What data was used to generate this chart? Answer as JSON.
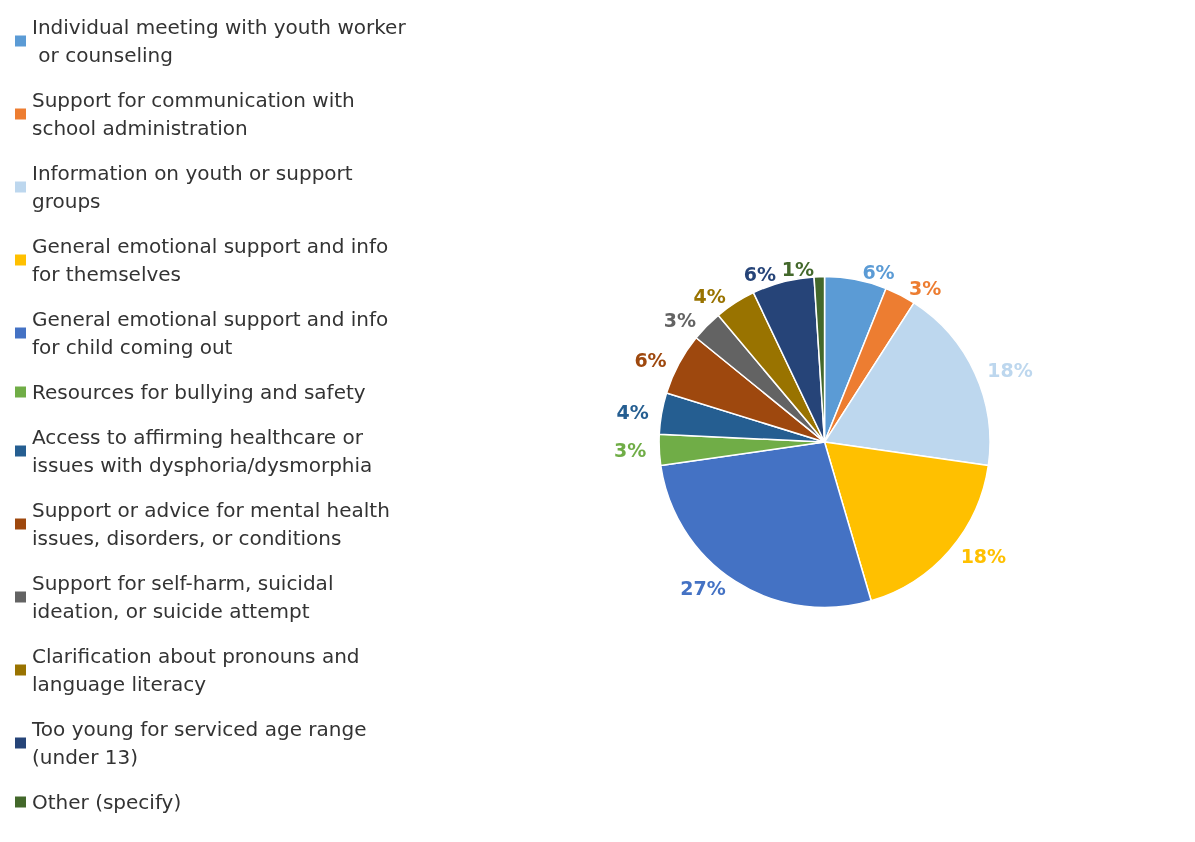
{
  "chart_data": {
    "type": "pie",
    "categories": [
      "Individual meeting with youth worker or counseling",
      "Support for communication with school administration",
      "Information on youth or support groups",
      "General emotional support and info for themselves",
      "General emotional support and info for child coming out",
      "Resources for bullying and safety",
      "Access to affirming healthcare or issues with dysphoria/dysmorphia",
      "Support or advice for mental health issues, disorders, or conditions",
      "Support for self-harm, suicidal ideation, or suicide attempt",
      "Clarification about pronouns and language literacy",
      "Too young for serviced age range (under 13)",
      "Other (specify)"
    ],
    "values": [
      6,
      3,
      18,
      18,
      27,
      3,
      4,
      6,
      3,
      4,
      6,
      1
    ],
    "value_labels": [
      "6%",
      "3%",
      "18%",
      "18%",
      "27%",
      "3%",
      "4%",
      "6%",
      "3%",
      "4%",
      "6%",
      "1%"
    ],
    "colors": [
      "#5b9bd5",
      "#ed7d31",
      "#bdd7ee",
      "#ffc000",
      "#4472c4",
      "#70ad47",
      "#255e91",
      "#9e480e",
      "#636363",
      "#997300",
      "#264478",
      "#43682b"
    ],
    "legend": "left"
  }
}
